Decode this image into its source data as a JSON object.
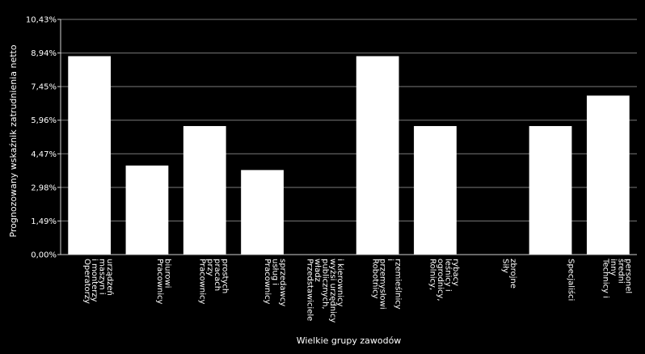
{
  "chart_data": {
    "type": "bar",
    "title": "",
    "xlabel": "Wielkie grupy zawodów",
    "ylabel": "Prognozowany wskaźnik zatrudnienia netto",
    "ylim": [
      0,
      10.43
    ],
    "yticks": [
      "0,00%",
      "1,49%",
      "2,98%",
      "4,47%",
      "5,96%",
      "7,45%",
      "8,94%",
      "10,43%"
    ],
    "ytick_values": [
      0,
      1.49,
      2.98,
      4.47,
      5.96,
      7.45,
      8.94,
      10.43
    ],
    "categories": [
      [
        "Operatorzy",
        "i monterzy",
        "maszyn i",
        "urządzeń"
      ],
      [
        "Pracownicy",
        "biurowi"
      ],
      [
        "Pracownicy",
        "przy",
        "pracach",
        "prostych"
      ],
      [
        "Pracownicy",
        "usług i",
        "sprzedawcy"
      ],
      [
        "Przedstawiciele",
        "władz",
        "publicznych,",
        "wyżsi urzędnicy",
        "i kierownicy"
      ],
      [
        "Robotnicy",
        "przemysłowi",
        "i",
        "rzemieślnicy"
      ],
      [
        "Rolnicy,",
        "ogrodnicy,",
        "leśnicy i",
        "rybacy"
      ],
      [
        "Siły",
        "zbrojne"
      ],
      [
        "Specjaliści"
      ],
      [
        "Technicy i",
        "inny",
        "średni",
        "personel"
      ]
    ],
    "values": [
      8.8,
      3.95,
      5.7,
      3.75,
      0,
      8.8,
      5.7,
      0,
      5.7,
      7.05
    ],
    "colors": {
      "background": "#000000",
      "bar": "#ffffff",
      "grid": "#7a7a7a",
      "axis": "#d0d0d0"
    },
    "grid": true,
    "legend": "none"
  }
}
